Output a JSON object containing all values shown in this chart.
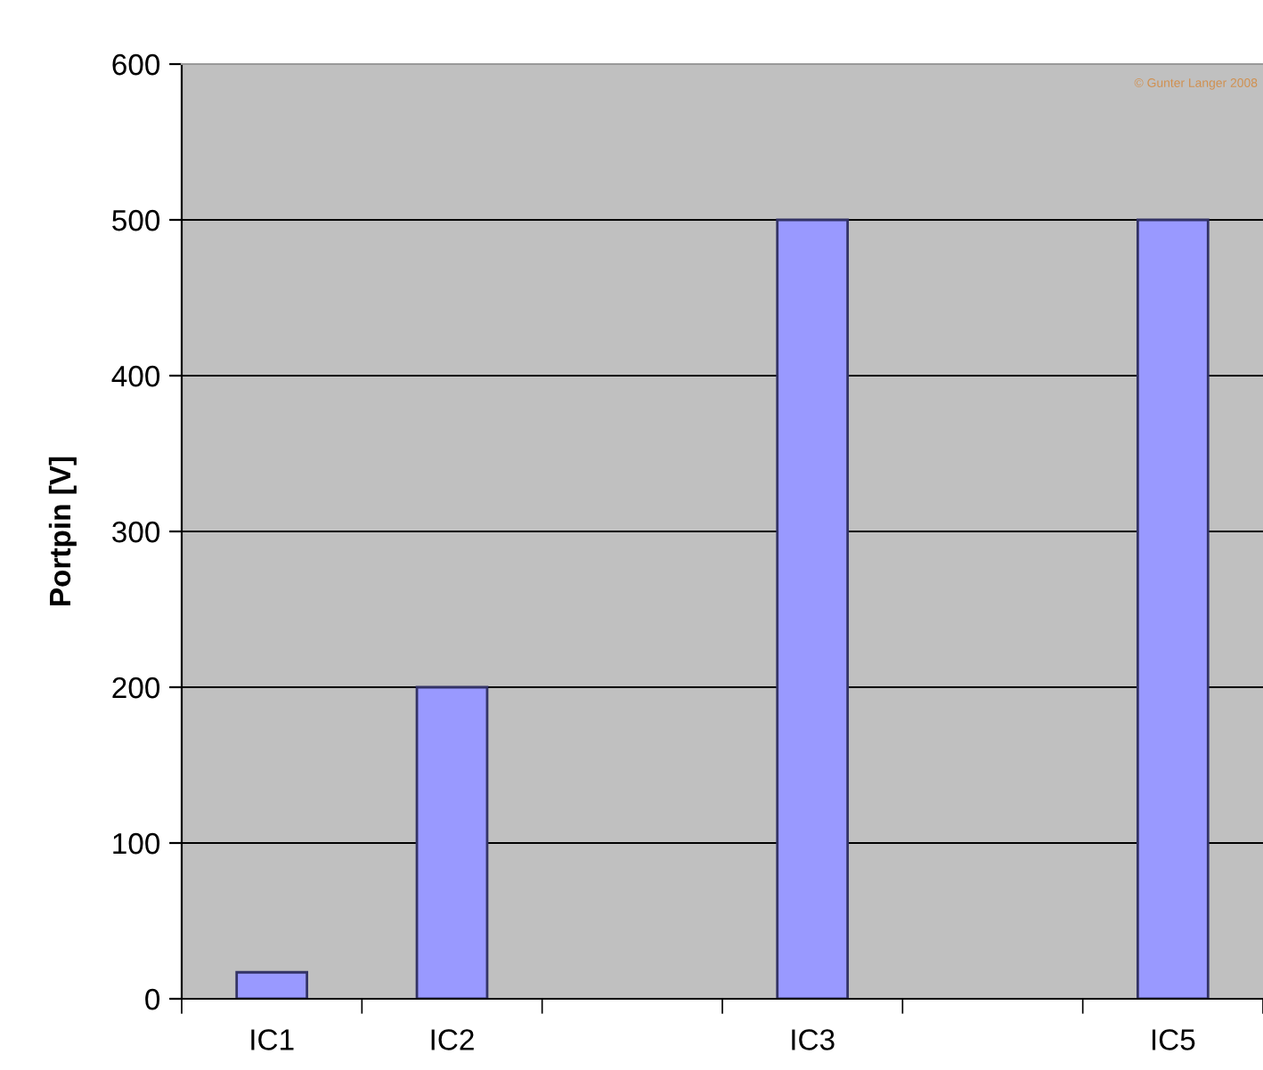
{
  "chart_data": {
    "type": "bar",
    "ylabel": "Portpin [V]",
    "categories": [
      "IC1",
      "IC2",
      null,
      "IC3",
      null,
      "IC5"
    ],
    "values": [
      17,
      200,
      null,
      500,
      null,
      500
    ],
    "color": "#9999ff",
    "ylim": [
      0,
      600
    ],
    "yticks": [
      0,
      100,
      200,
      300,
      400,
      500,
      600
    ],
    "grid": "y",
    "annotations": [
      "© Gunter Langer 2008"
    ]
  }
}
